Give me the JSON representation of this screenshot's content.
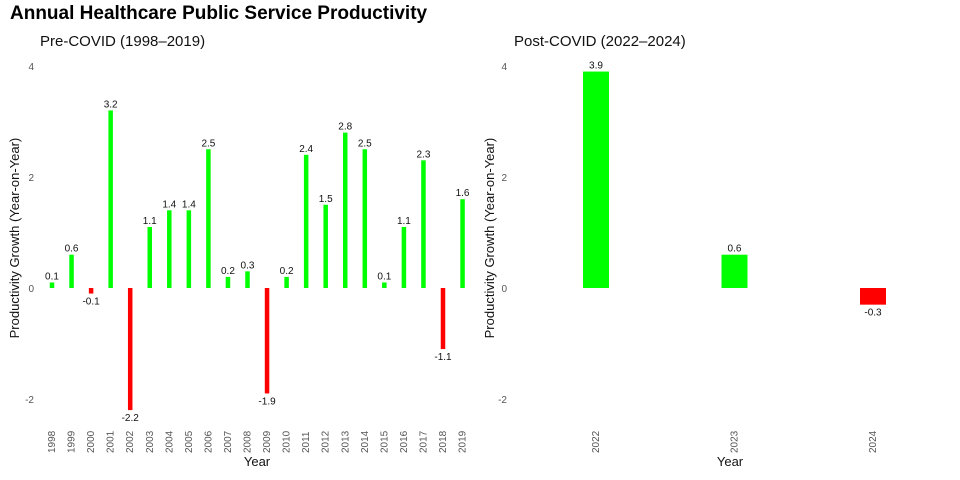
{
  "title": "Annual Healthcare Public Service Productivity",
  "colors": {
    "positive": "#00ff00",
    "negative": "#ff0000"
  },
  "chart_data": [
    {
      "type": "bar",
      "title": "Pre-COVID (1998–2019)",
      "xlabel": "Year",
      "ylabel": "Productivity Growth (Year-on-Year)",
      "ylim": [
        -2.2,
        4.0
      ],
      "yticks": [
        -2,
        0,
        2,
        4
      ],
      "grid": false,
      "categories": [
        "1998",
        "1999",
        "2000",
        "2001",
        "2002",
        "2003",
        "2004",
        "2005",
        "2006",
        "2007",
        "2008",
        "2009",
        "2010",
        "2011",
        "2012",
        "2013",
        "2014",
        "2015",
        "2016",
        "2017",
        "2018",
        "2019"
      ],
      "values": [
        0.1,
        0.6,
        -0.1,
        3.2,
        -2.2,
        1.1,
        1.4,
        1.4,
        2.5,
        0.2,
        0.3,
        -1.9,
        0.2,
        2.4,
        1.5,
        2.8,
        2.5,
        0.1,
        1.1,
        2.3,
        -1.1,
        1.6
      ],
      "labels": [
        "0.1",
        "0.6",
        "-0.1",
        "3.2",
        "-2.2",
        "1.1",
        "1.4",
        "1.4",
        "2.5",
        "0.2",
        "0.3",
        "-1.9",
        "0.2",
        "2.4",
        "1.5",
        "2.8",
        "2.5",
        "0.1",
        "1.1",
        "2.3",
        "-1.1",
        "1.6"
      ]
    },
    {
      "type": "bar",
      "title": "Post-COVID (2022–2024)",
      "xlabel": "Year",
      "ylabel": "Productivity Growth (Year-on-Year)",
      "ylim": [
        -2.2,
        4.0
      ],
      "yticks": [
        -2,
        0,
        2,
        4
      ],
      "grid": false,
      "categories": [
        "2022",
        "2023",
        "2024"
      ],
      "values": [
        3.9,
        0.6,
        -0.3
      ],
      "labels": [
        "3.9",
        "0.6",
        "-0.3"
      ]
    }
  ]
}
